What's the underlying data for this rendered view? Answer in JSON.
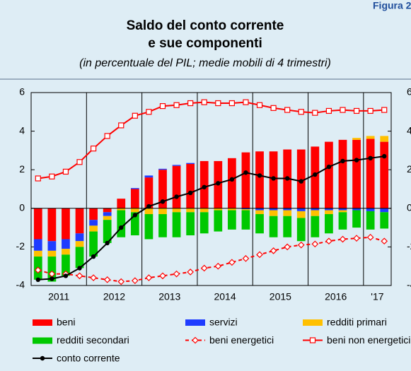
{
  "chart_data": {
    "type": "bar",
    "figure_label": "Figura 2",
    "title": [
      "Saldo del conto corrente",
      "e sue componenti"
    ],
    "subtitle": "(in percentuale del PIL; medie mobili di 4 trimestri)",
    "categories": [
      "2011",
      null,
      null,
      null,
      "2012",
      null,
      null,
      null,
      "2013",
      null,
      null,
      null,
      "2014",
      null,
      null,
      null,
      "2015",
      null,
      null,
      null,
      "2016",
      null,
      null,
      null,
      "'17",
      null
    ],
    "ylim": [
      -4,
      6
    ],
    "yticks": [
      -4,
      -2,
      0,
      2,
      4,
      6
    ],
    "y2lim": [
      -4,
      6
    ],
    "y2ticks": [
      -4,
      -2,
      0,
      2,
      4,
      6
    ],
    "series": [
      {
        "name": "beni",
        "type": "bar",
        "color": "#ff0000",
        "values": [
          -1.6,
          -1.7,
          -1.6,
          -1.3,
          -0.6,
          -0.2,
          0.5,
          1.0,
          1.6,
          2.0,
          2.2,
          2.3,
          2.45,
          2.45,
          2.6,
          2.9,
          2.95,
          2.95,
          3.05,
          3.05,
          3.2,
          3.45,
          3.55,
          3.55,
          3.6,
          3.45
        ]
      },
      {
        "name": "servizi",
        "type": "bar",
        "color": "#1f3cff",
        "values": [
          -0.6,
          -0.5,
          -0.5,
          -0.4,
          -0.3,
          -0.2,
          0.0,
          0.05,
          0.1,
          0.05,
          0.05,
          0.05,
          0.0,
          0.0,
          0.0,
          -0.05,
          -0.1,
          -0.1,
          -0.1,
          -0.15,
          -0.1,
          -0.1,
          -0.1,
          -0.1,
          -0.15,
          -0.2
        ]
      },
      {
        "name": "redditi primari",
        "type": "bar",
        "color": "#ffc000",
        "values": [
          -0.3,
          -0.3,
          -0.3,
          -0.3,
          -0.3,
          -0.2,
          -0.1,
          -0.2,
          -0.3,
          -0.3,
          -0.2,
          -0.2,
          -0.2,
          -0.1,
          -0.1,
          -0.05,
          -0.2,
          -0.3,
          -0.3,
          -0.35,
          -0.3,
          -0.2,
          -0.1,
          0.1,
          0.15,
          0.3
        ]
      },
      {
        "name": "redditi secondari",
        "type": "bar",
        "color": "#00c800",
        "values": [
          -1.2,
          -1.3,
          -1.1,
          -1.1,
          -1.3,
          -1.2,
          -1.4,
          -1.2,
          -1.3,
          -1.2,
          -1.3,
          -1.2,
          -1.1,
          -1.1,
          -1.0,
          -1.0,
          -1.0,
          -1.1,
          -1.1,
          -1.2,
          -1.1,
          -1.0,
          -0.9,
          -0.9,
          -0.95,
          -0.85
        ]
      },
      {
        "name": "beni energetici",
        "type": "line",
        "color": "#ff0000",
        "dash": true,
        "marker": "diamond",
        "values": [
          -3.2,
          -3.4,
          -3.4,
          -3.5,
          -3.6,
          -3.7,
          -3.8,
          -3.75,
          -3.6,
          -3.5,
          -3.4,
          -3.3,
          -3.1,
          -3.0,
          -2.8,
          -2.6,
          -2.4,
          -2.2,
          -2.0,
          -1.9,
          -1.85,
          -1.7,
          -1.6,
          -1.55,
          -1.5,
          -1.7
        ]
      },
      {
        "name": "beni non energetici",
        "type": "line",
        "color": "#ff0000",
        "dash": false,
        "marker": "square",
        "values": [
          1.55,
          1.65,
          1.9,
          2.4,
          3.1,
          3.75,
          4.3,
          4.8,
          5.0,
          5.3,
          5.35,
          5.45,
          5.5,
          5.45,
          5.45,
          5.5,
          5.35,
          5.2,
          5.1,
          5.0,
          4.95,
          5.05,
          5.1,
          5.05,
          5.05,
          5.1
        ]
      },
      {
        "name": "conto corrente",
        "type": "line",
        "color": "#000000",
        "dash": false,
        "marker": "circle",
        "values": [
          -3.7,
          -3.65,
          -3.5,
          -3.1,
          -2.5,
          -1.8,
          -1.0,
          -0.35,
          0.1,
          0.35,
          0.6,
          0.8,
          1.1,
          1.3,
          1.5,
          1.85,
          1.7,
          1.55,
          1.55,
          1.4,
          1.75,
          2.15,
          2.45,
          2.5,
          2.6,
          2.7
        ]
      }
    ]
  }
}
